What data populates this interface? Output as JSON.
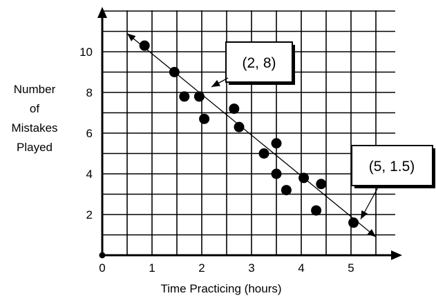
{
  "chart_data": {
    "type": "scatter",
    "title": "",
    "xlabel": "Time Practicing (hours)",
    "ylabel_lines": [
      "Number",
      "of",
      "Mistakes",
      "Played"
    ],
    "xlim": [
      0,
      6
    ],
    "ylim": [
      0,
      12
    ],
    "x_ticks": [
      "0",
      "1",
      "2",
      "3",
      "4",
      "5"
    ],
    "y_ticks": [
      "2",
      "4",
      "6",
      "8",
      "10"
    ],
    "grid": true,
    "points": [
      {
        "x": 0.85,
        "y": 10.3
      },
      {
        "x": 1.45,
        "y": 9.0
      },
      {
        "x": 1.65,
        "y": 7.8
      },
      {
        "x": 1.95,
        "y": 7.8
      },
      {
        "x": 2.05,
        "y": 6.7
      },
      {
        "x": 2.65,
        "y": 7.2
      },
      {
        "x": 2.75,
        "y": 6.3
      },
      {
        "x": 3.25,
        "y": 5.0
      },
      {
        "x": 3.5,
        "y": 5.5
      },
      {
        "x": 3.5,
        "y": 4.0
      },
      {
        "x": 3.7,
        "y": 3.2
      },
      {
        "x": 4.05,
        "y": 3.8
      },
      {
        "x": 4.3,
        "y": 2.2
      },
      {
        "x": 4.4,
        "y": 3.5
      },
      {
        "x": 5.05,
        "y": 1.6
      }
    ],
    "trend_line": {
      "from": [
        0.5,
        10.9
      ],
      "to": [
        5.5,
        0.9
      ]
    },
    "annotations": [
      {
        "label": "(2, 8)",
        "x": 2,
        "y": 8
      },
      {
        "label": "(5, 1.5)",
        "x": 5,
        "y": 1.5
      }
    ]
  }
}
